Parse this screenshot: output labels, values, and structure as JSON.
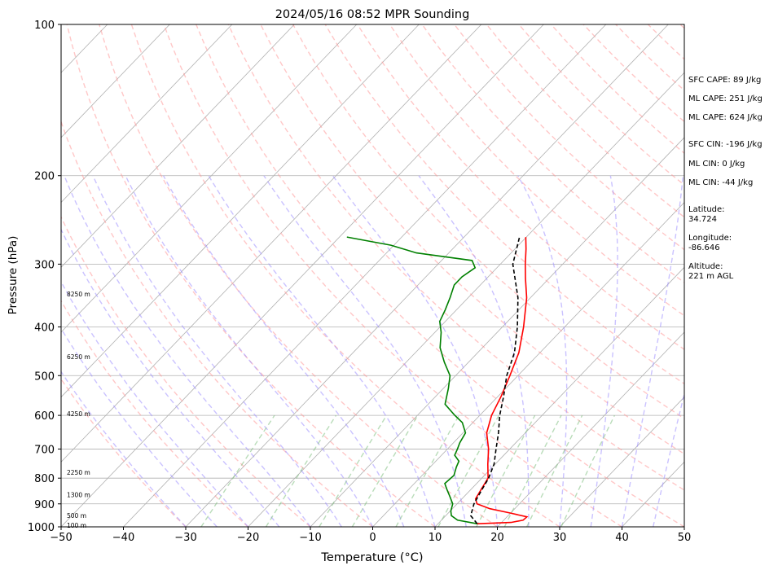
{
  "chart_data": {
    "type": "line",
    "title": "2024/05/16 08:52 MPR Sounding",
    "xlabel": "Temperature (°C)",
    "ylabel": "Pressure (hPa)",
    "xlim": [
      -50,
      50
    ],
    "ylim": [
      1000,
      100
    ],
    "y_scale": "log",
    "x_ticks": [
      "−50",
      "−40",
      "−30",
      "−20",
      "−10",
      "0",
      "10",
      "20",
      "30",
      "40",
      "50"
    ],
    "y_ticks": [
      "100",
      "200",
      "300",
      "400",
      "500",
      "600",
      "700",
      "800",
      "900",
      "1000"
    ],
    "grid": true,
    "skew": true,
    "height_labels": [
      {
        "text": "8250 m",
        "p": 345
      },
      {
        "text": "6250 m",
        "p": 460
      },
      {
        "text": "4250 m",
        "p": 597
      },
      {
        "text": "2250 m",
        "p": 781
      },
      {
        "text": "1300 m",
        "p": 866
      },
      {
        "text": "500 m",
        "p": 952
      },
      {
        "text": "100 m",
        "p": 996
      }
    ],
    "series": [
      {
        "name": "",
        "role": "temperature",
        "color": "#ff0000",
        "points": [
          [
            986,
            16.3
          ],
          [
            980,
            21.5
          ],
          [
            970,
            23.1
          ],
          [
            955,
            23.2
          ],
          [
            940,
            20.2
          ],
          [
            920,
            16.0
          ],
          [
            900,
            13.2
          ],
          [
            880,
            12.2
          ],
          [
            860,
            11.9
          ],
          [
            840,
            11.6
          ],
          [
            800,
            11.0
          ],
          [
            750,
            8.8
          ],
          [
            700,
            6.6
          ],
          [
            650,
            3.8
          ],
          [
            600,
            1.9
          ],
          [
            550,
            0.5
          ],
          [
            500,
            -1.3
          ],
          [
            450,
            -3.4
          ],
          [
            400,
            -6.6
          ],
          [
            350,
            -10.6
          ],
          [
            320,
            -13.8
          ],
          [
            300,
            -16.0
          ],
          [
            280,
            -18.2
          ],
          [
            265,
            -20.1
          ]
        ]
      },
      {
        "name": "",
        "role": "dewpoint",
        "color": "#008000",
        "points": [
          [
            986,
            16.3
          ],
          [
            970,
            12.6
          ],
          [
            950,
            10.9
          ],
          [
            930,
            10.1
          ],
          [
            900,
            9.3
          ],
          [
            870,
            7.7
          ],
          [
            840,
            6.0
          ],
          [
            820,
            4.9
          ],
          [
            790,
            5.1
          ],
          [
            760,
            4.2
          ],
          [
            740,
            3.7
          ],
          [
            720,
            2.1
          ],
          [
            700,
            1.6
          ],
          [
            680,
            1.0
          ],
          [
            650,
            0.4
          ],
          [
            620,
            -1.7
          ],
          [
            600,
            -4.0
          ],
          [
            570,
            -7.3
          ],
          [
            530,
            -9.2
          ],
          [
            500,
            -10.9
          ],
          [
            470,
            -13.9
          ],
          [
            440,
            -16.8
          ],
          [
            410,
            -19.0
          ],
          [
            390,
            -20.9
          ],
          [
            370,
            -21.8
          ],
          [
            350,
            -22.9
          ],
          [
            330,
            -24.2
          ],
          [
            318,
            -24.2
          ],
          [
            305,
            -23.5
          ],
          [
            295,
            -25.1
          ],
          [
            285,
            -35.2
          ],
          [
            275,
            -40.5
          ],
          [
            265,
            -48.8
          ]
        ]
      },
      {
        "name": "",
        "role": "parcel",
        "color": "#000000",
        "points": [
          [
            986,
            16.3
          ],
          [
            950,
            14.0
          ],
          [
            900,
            12.7
          ],
          [
            850,
            11.9
          ],
          [
            800,
            11.1
          ],
          [
            750,
            9.8
          ],
          [
            700,
            7.8
          ],
          [
            650,
            5.7
          ],
          [
            600,
            3.2
          ],
          [
            550,
            0.9
          ],
          [
            500,
            -1.8
          ],
          [
            450,
            -4.1
          ],
          [
            400,
            -7.6
          ],
          [
            350,
            -12.0
          ],
          [
            300,
            -18.0
          ],
          [
            265,
            -21.1
          ]
        ]
      }
    ]
  },
  "stats": {
    "sfc_cape": "SFC CAPE: 89 J/kg",
    "ml_cape_1": "ML CAPE: 251 J/kg",
    "ml_cape_2": "ML CAPE: 624 J/kg",
    "sfc_cin": "SFC CIN: -196 J/kg",
    "ml_cin_1": "ML CIN: 0 J/kg",
    "ml_cin_2": "ML CIN: -44 J/kg",
    "latitude_label": "Latitude:",
    "latitude_value": "34.724",
    "longitude_label": "Longitude:",
    "longitude_value": "-86.646",
    "altitude_label": "Altitude:",
    "altitude_value": "221 m AGL"
  },
  "colors": {
    "isotherm": "#b0b0b0",
    "dry_adiabat": "#ff9999",
    "moist_adiabat": "#9f8fff",
    "mixing_ratio": "#7fbf7f"
  }
}
